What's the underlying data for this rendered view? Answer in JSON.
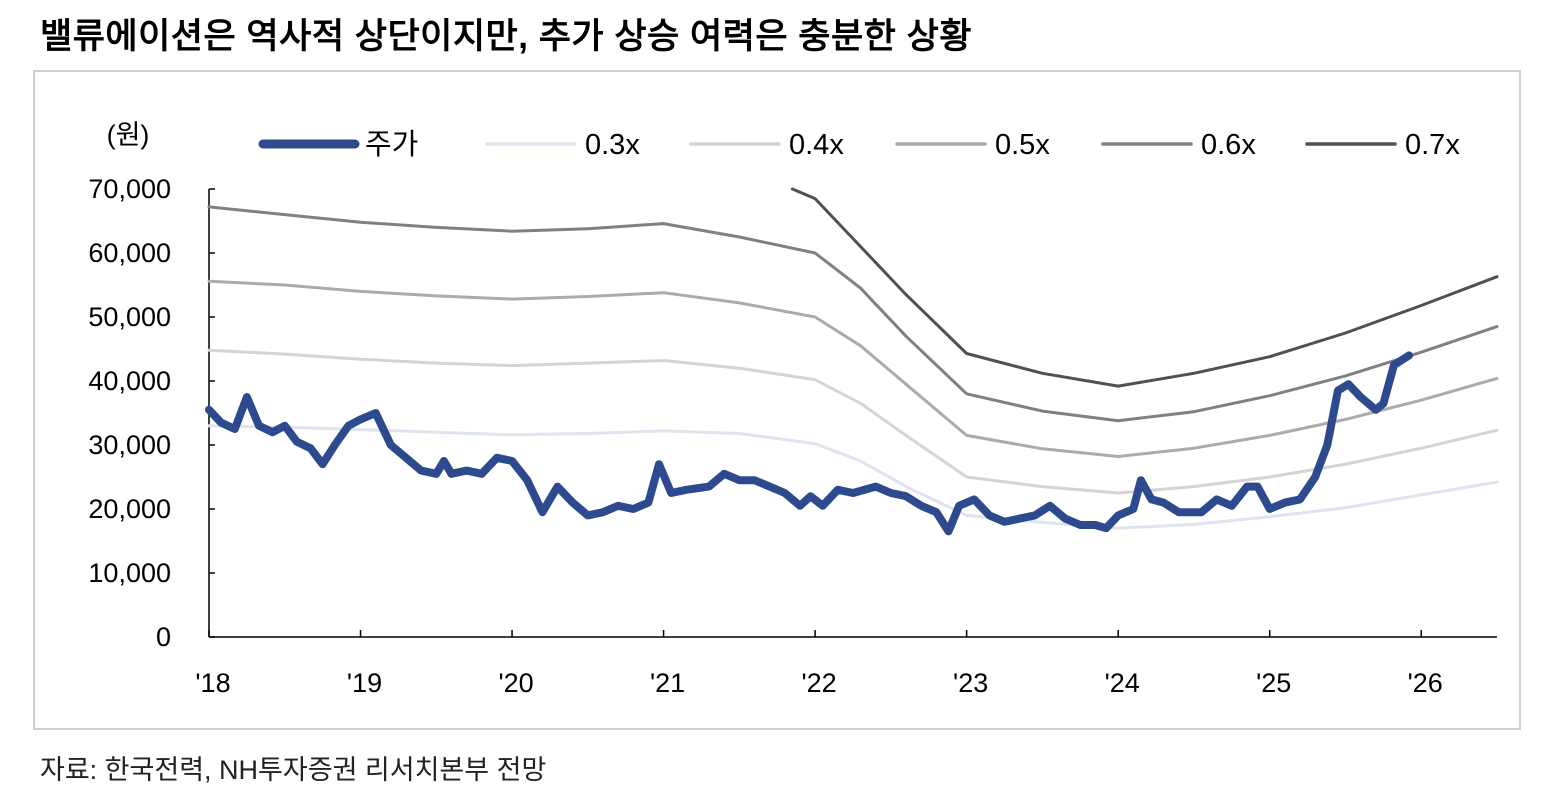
{
  "title": "밸류에이션은 역사적 상단이지만, 추가 상승 여력은 충분한 상황",
  "source": "자료: 한국전력, NH투자증권 리서치본부 전망",
  "chart_data": {
    "type": "line",
    "y_unit_label": "(원)",
    "ylim": [
      0,
      70000
    ],
    "y_ticks": [
      0,
      10000,
      20000,
      30000,
      40000,
      50000,
      60000,
      70000
    ],
    "y_tick_labels": [
      "0",
      "10,000",
      "20,000",
      "30,000",
      "40,000",
      "50,000",
      "60,000",
      "70,000"
    ],
    "x_range": [
      2018.0,
      2026.5
    ],
    "x_ticks": [
      2018,
      2019,
      2020,
      2021,
      2022,
      2023,
      2024,
      2025,
      2026
    ],
    "x_tick_labels": [
      "'18",
      "'19",
      "'20",
      "'21",
      "'22",
      "'23",
      "'24",
      "'25",
      "'26"
    ],
    "legend_position": "top",
    "grid": false,
    "series": [
      {
        "name": "주가",
        "color": "#2e4a8f",
        "width": 8,
        "points": [
          [
            2018.0,
            35500
          ],
          [
            2018.08,
            33500
          ],
          [
            2018.17,
            32500
          ],
          [
            2018.25,
            37500
          ],
          [
            2018.33,
            33000
          ],
          [
            2018.42,
            32000
          ],
          [
            2018.5,
            33000
          ],
          [
            2018.58,
            30500
          ],
          [
            2018.67,
            29500
          ],
          [
            2018.75,
            27000
          ],
          [
            2018.83,
            30000
          ],
          [
            2018.92,
            33000
          ],
          [
            2019.0,
            34000
          ],
          [
            2019.1,
            35000
          ],
          [
            2019.2,
            30000
          ],
          [
            2019.3,
            28000
          ],
          [
            2019.4,
            26000
          ],
          [
            2019.5,
            25500
          ],
          [
            2019.55,
            27500
          ],
          [
            2019.6,
            25500
          ],
          [
            2019.7,
            26000
          ],
          [
            2019.8,
            25500
          ],
          [
            2019.9,
            28000
          ],
          [
            2020.0,
            27500
          ],
          [
            2020.1,
            24500
          ],
          [
            2020.2,
            19500
          ],
          [
            2020.3,
            23500
          ],
          [
            2020.4,
            21000
          ],
          [
            2020.5,
            19000
          ],
          [
            2020.6,
            19500
          ],
          [
            2020.7,
            20500
          ],
          [
            2020.8,
            20000
          ],
          [
            2020.9,
            21000
          ],
          [
            2020.97,
            27000
          ],
          [
            2021.05,
            22500
          ],
          [
            2021.15,
            23000
          ],
          [
            2021.3,
            23500
          ],
          [
            2021.4,
            25500
          ],
          [
            2021.5,
            24500
          ],
          [
            2021.6,
            24500
          ],
          [
            2021.7,
            23500
          ],
          [
            2021.8,
            22500
          ],
          [
            2021.9,
            20500
          ],
          [
            2021.97,
            22000
          ],
          [
            2022.05,
            20500
          ],
          [
            2022.15,
            23000
          ],
          [
            2022.25,
            22500
          ],
          [
            2022.4,
            23500
          ],
          [
            2022.5,
            22500
          ],
          [
            2022.6,
            22000
          ],
          [
            2022.7,
            20500
          ],
          [
            2022.8,
            19500
          ],
          [
            2022.88,
            16500
          ],
          [
            2022.95,
            20500
          ],
          [
            2023.05,
            21500
          ],
          [
            2023.15,
            19000
          ],
          [
            2023.25,
            18000
          ],
          [
            2023.35,
            18500
          ],
          [
            2023.45,
            19000
          ],
          [
            2023.55,
            20500
          ],
          [
            2023.65,
            18500
          ],
          [
            2023.75,
            17500
          ],
          [
            2023.85,
            17500
          ],
          [
            2023.92,
            17000
          ],
          [
            2024.0,
            19000
          ],
          [
            2024.1,
            20000
          ],
          [
            2024.15,
            24500
          ],
          [
            2024.22,
            21500
          ],
          [
            2024.3,
            21000
          ],
          [
            2024.4,
            19500
          ],
          [
            2024.55,
            19500
          ],
          [
            2024.65,
            21500
          ],
          [
            2024.75,
            20500
          ],
          [
            2024.85,
            23500
          ],
          [
            2024.92,
            23500
          ],
          [
            2025.0,
            20000
          ],
          [
            2025.1,
            21000
          ],
          [
            2025.2,
            21500
          ],
          [
            2025.3,
            25000
          ],
          [
            2025.38,
            30000
          ],
          [
            2025.45,
            38500
          ],
          [
            2025.52,
            39500
          ],
          [
            2025.6,
            37500
          ],
          [
            2025.7,
            35500
          ],
          [
            2025.75,
            36500
          ],
          [
            2025.82,
            42500
          ],
          [
            2025.92,
            44000
          ]
        ]
      },
      {
        "name": "0.3x",
        "color": "#dde3ef",
        "width": 3,
        "points": [
          [
            2018.0,
            33000
          ],
          [
            2018.5,
            32800
          ],
          [
            2019.0,
            32400
          ],
          [
            2019.5,
            32000
          ],
          [
            2020.0,
            31600
          ],
          [
            2020.5,
            31800
          ],
          [
            2021.0,
            32200
          ],
          [
            2021.5,
            31800
          ],
          [
            2022.0,
            30200
          ],
          [
            2022.3,
            27500
          ],
          [
            2022.6,
            23500
          ],
          [
            2023.0,
            19000
          ],
          [
            2023.5,
            17900
          ],
          [
            2024.0,
            17000
          ],
          [
            2024.5,
            17600
          ],
          [
            2025.0,
            18800
          ],
          [
            2025.5,
            20200
          ],
          [
            2026.0,
            22200
          ],
          [
            2026.5,
            24200
          ]
        ]
      },
      {
        "name": "0.4x",
        "color": "#d4d4d4",
        "width": 3,
        "points": [
          [
            2018.0,
            44800
          ],
          [
            2018.5,
            44200
          ],
          [
            2019.0,
            43400
          ],
          [
            2019.5,
            42800
          ],
          [
            2020.0,
            42400
          ],
          [
            2020.5,
            42800
          ],
          [
            2021.0,
            43200
          ],
          [
            2021.5,
            42000
          ],
          [
            2022.0,
            40200
          ],
          [
            2022.3,
            36500
          ],
          [
            2022.6,
            31500
          ],
          [
            2023.0,
            25000
          ],
          [
            2023.5,
            23500
          ],
          [
            2024.0,
            22500
          ],
          [
            2024.5,
            23500
          ],
          [
            2025.0,
            25000
          ],
          [
            2025.5,
            27000
          ],
          [
            2026.0,
            29500
          ],
          [
            2026.5,
            32300
          ]
        ]
      },
      {
        "name": "0.5x",
        "color": "#ababab",
        "width": 3,
        "points": [
          [
            2018.0,
            55600
          ],
          [
            2018.5,
            55000
          ],
          [
            2019.0,
            54000
          ],
          [
            2019.5,
            53300
          ],
          [
            2020.0,
            52800
          ],
          [
            2020.5,
            53200
          ],
          [
            2021.0,
            53800
          ],
          [
            2021.5,
            52200
          ],
          [
            2022.0,
            50000
          ],
          [
            2022.3,
            45500
          ],
          [
            2022.6,
            39500
          ],
          [
            2023.0,
            31500
          ],
          [
            2023.5,
            29400
          ],
          [
            2024.0,
            28200
          ],
          [
            2024.5,
            29500
          ],
          [
            2025.0,
            31500
          ],
          [
            2025.5,
            34000
          ],
          [
            2026.0,
            37000
          ],
          [
            2026.5,
            40400
          ]
        ]
      },
      {
        "name": "0.6x",
        "color": "#808080",
        "width": 3,
        "points": [
          [
            2018.0,
            67200
          ],
          [
            2018.5,
            66000
          ],
          [
            2019.0,
            64800
          ],
          [
            2019.5,
            64000
          ],
          [
            2020.0,
            63400
          ],
          [
            2020.5,
            63800
          ],
          [
            2021.0,
            64600
          ],
          [
            2021.5,
            62500
          ],
          [
            2022.0,
            60000
          ],
          [
            2022.3,
            54500
          ],
          [
            2022.6,
            47000
          ],
          [
            2023.0,
            38000
          ],
          [
            2023.5,
            35300
          ],
          [
            2024.0,
            33800
          ],
          [
            2024.5,
            35200
          ],
          [
            2025.0,
            37700
          ],
          [
            2025.5,
            40800
          ],
          [
            2026.0,
            44500
          ],
          [
            2026.5,
            48500
          ]
        ]
      },
      {
        "name": "0.7x",
        "color": "#505050",
        "width": 3,
        "points": [
          [
            2021.85,
            70000
          ],
          [
            2022.0,
            68500
          ],
          [
            2022.3,
            61000
          ],
          [
            2022.6,
            53500
          ],
          [
            2023.0,
            44300
          ],
          [
            2023.5,
            41200
          ],
          [
            2024.0,
            39200
          ],
          [
            2024.5,
            41200
          ],
          [
            2025.0,
            43800
          ],
          [
            2025.5,
            47500
          ],
          [
            2026.0,
            51800
          ],
          [
            2026.5,
            56300
          ]
        ]
      }
    ]
  }
}
